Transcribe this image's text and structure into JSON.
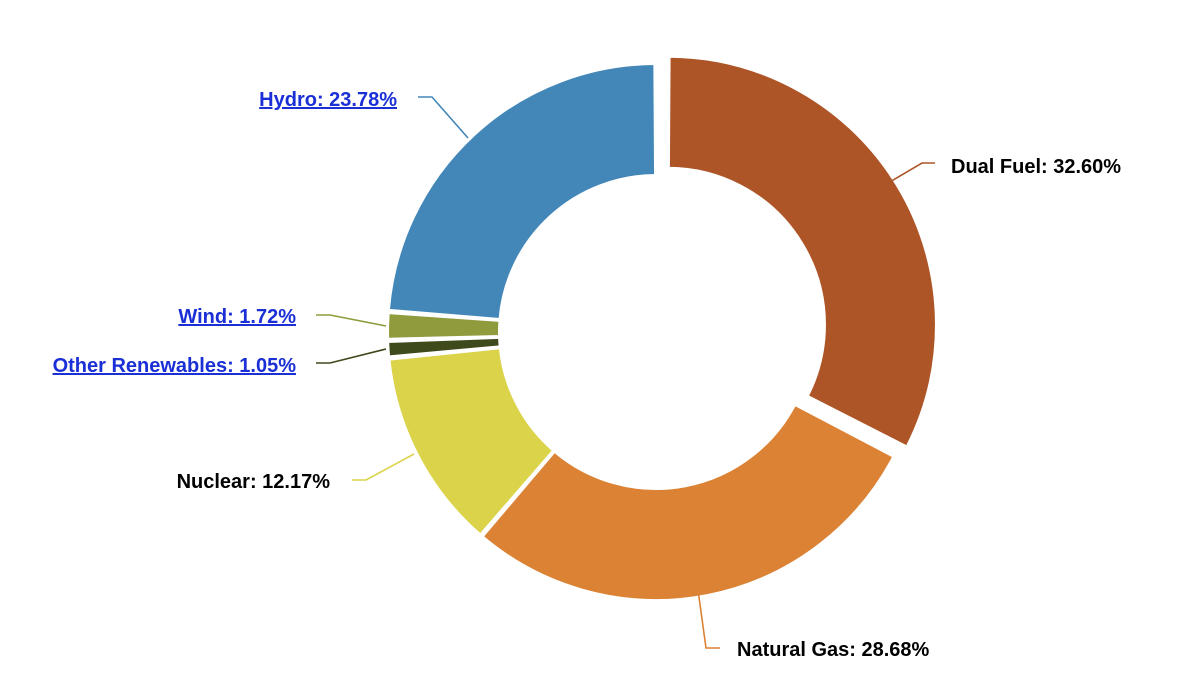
{
  "chart_data": {
    "type": "pie",
    "variant": "donut",
    "title": "",
    "series": [
      {
        "slices": [
          {
            "label": "Dual Fuel",
            "value": 32.6,
            "display": "Dual Fuel: 32.60%",
            "color": "#AD5527",
            "exploded": true,
            "label_color": "#000000",
            "is_link": false
          },
          {
            "label": "Natural Gas",
            "value": 28.68,
            "display": "Natural Gas: 28.68%",
            "color": "#DC8235",
            "exploded": false,
            "label_color": "#000000",
            "is_link": false
          },
          {
            "label": "Nuclear",
            "value": 12.17,
            "display": "Nuclear: 12.17%",
            "color": "#DBD34A",
            "exploded": false,
            "label_color": "#000000",
            "is_link": false
          },
          {
            "label": "Other Renewables",
            "value": 1.05,
            "display": "Other Renewables: 1.05%",
            "color": "#3F4A1C",
            "exploded": false,
            "label_color": "#1A2FD6",
            "is_link": true
          },
          {
            "label": "Wind",
            "value": 1.72,
            "display": "Wind: 1.72%",
            "color": "#8F9B3C",
            "exploded": false,
            "label_color": "#1A2FD6",
            "is_link": true
          },
          {
            "label": "Hydro",
            "value": 23.78,
            "display": "Hydro: 23.78%",
            "color": "#4287B8",
            "exploded": false,
            "label_color": "#1A2FD6",
            "is_link": true
          }
        ]
      }
    ],
    "unit": "%",
    "legend": "none",
    "labels_placement": "outside-with-leader-lines"
  }
}
